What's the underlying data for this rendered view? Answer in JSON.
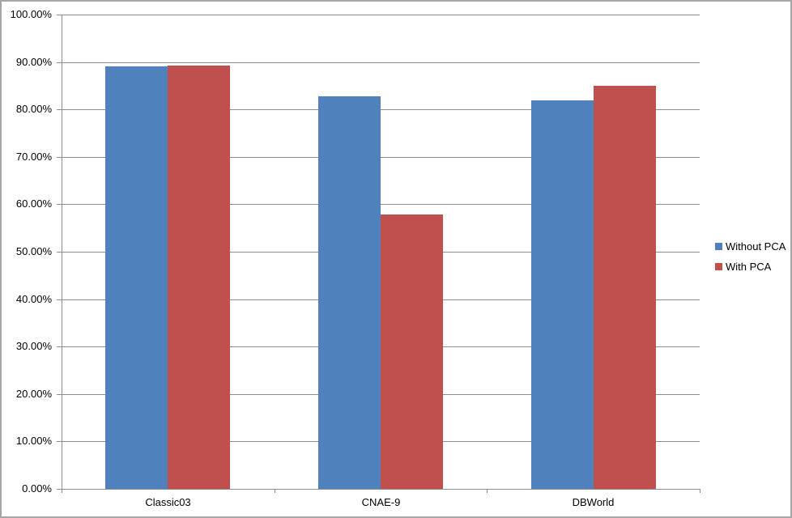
{
  "chart_data": {
    "type": "bar",
    "title": "",
    "xlabel": "",
    "ylabel": "",
    "categories": [
      "Classic03",
      "CNAE-9",
      "DBWorld"
    ],
    "series": [
      {
        "name": "Without PCA",
        "color": "#4F81BD",
        "values": [
          89.0,
          82.8,
          81.9
        ]
      },
      {
        "name": "With PCA",
        "color": "#C0504D",
        "values": [
          89.3,
          57.8,
          85.0
        ]
      }
    ],
    "ylim": [
      0,
      100
    ],
    "y_tick_step": 10,
    "y_tick_labels": [
      "0.00%",
      "10.00%",
      "20.00%",
      "30.00%",
      "40.00%",
      "50.00%",
      "60.00%",
      "70.00%",
      "80.00%",
      "90.00%",
      "100.00%"
    ],
    "grid": true,
    "legend_position": "right"
  },
  "style": {
    "background": "#FFFFFF",
    "border_color": "#A6A6A6",
    "gridline_color": "#8C8C8C",
    "axis_color": "#8C8C8C",
    "text_color": "#000000"
  }
}
